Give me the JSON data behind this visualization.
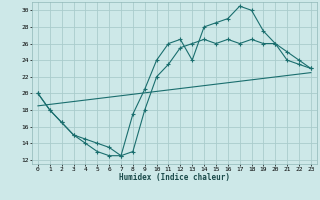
{
  "background_color": "#cde8e8",
  "grid_color": "#aacccc",
  "line_color": "#1a6e6e",
  "xlabel": "Humidex (Indice chaleur)",
  "xlim": [
    -0.5,
    23.5
  ],
  "ylim": [
    11.5,
    31
  ],
  "yticks": [
    12,
    14,
    16,
    18,
    20,
    22,
    24,
    26,
    28,
    30
  ],
  "xticks": [
    0,
    1,
    2,
    3,
    4,
    5,
    6,
    7,
    8,
    9,
    10,
    11,
    12,
    13,
    14,
    15,
    16,
    17,
    18,
    19,
    20,
    21,
    22,
    23
  ],
  "line1_x": [
    0,
    1,
    2,
    3,
    4,
    5,
    6,
    7,
    8,
    9,
    10,
    11,
    12,
    13,
    14,
    15,
    16,
    17,
    18,
    19,
    20,
    21,
    22,
    23
  ],
  "line1_y": [
    20,
    18,
    16.5,
    15,
    14,
    13,
    12.5,
    12.5,
    17.5,
    20.5,
    24,
    26,
    26.5,
    24,
    28,
    28.5,
    29,
    30.5,
    30,
    27.5,
    26,
    25,
    24,
    23
  ],
  "line2_x": [
    0,
    1,
    2,
    3,
    4,
    5,
    6,
    7,
    8,
    9,
    10,
    11,
    12,
    13,
    14,
    15,
    16,
    17,
    18,
    19,
    20,
    21,
    22,
    23
  ],
  "line2_y": [
    20,
    18,
    16.5,
    15,
    14.5,
    14,
    13.5,
    12.5,
    13,
    18,
    22,
    23.5,
    25.5,
    26,
    26.5,
    26,
    26.5,
    26,
    26.5,
    26,
    26,
    24,
    23.5,
    23
  ],
  "line3_x": [
    0,
    23
  ],
  "line3_y": [
    18.5,
    22.5
  ]
}
